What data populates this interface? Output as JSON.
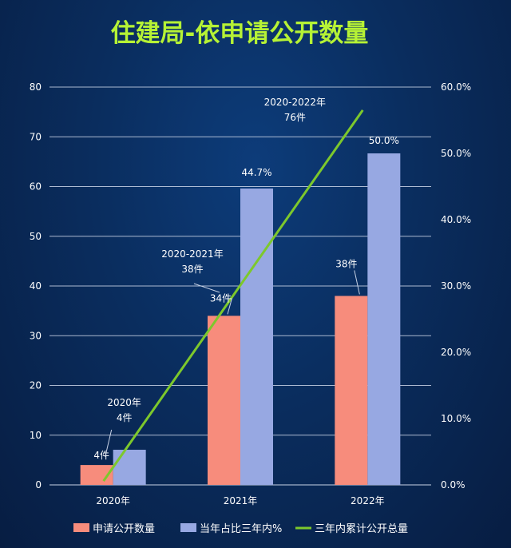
{
  "chart_data": {
    "type": "bar",
    "title": "住建局-依申请公开数量",
    "categories": [
      "2020年",
      "2021年",
      "2022年"
    ],
    "series": [
      {
        "name": "申请公开数量",
        "axis": "left",
        "values": [
          4,
          34,
          38
        ],
        "labels": [
          "4件",
          "34件",
          "38件"
        ],
        "color": "#f78c7c"
      },
      {
        "name": "当年占比三年内%",
        "axis": "right",
        "values": [
          5.3,
          44.7,
          50.0
        ],
        "labels": [
          "",
          "44.7%",
          "50.0%"
        ],
        "color": "#97a8e2"
      },
      {
        "name": "三年内累计公开总量",
        "type": "line",
        "axis": "left",
        "values": [
          4,
          38,
          76
        ],
        "labels": [
          "2020年\n4件",
          "2020-2021年\n38件",
          "2020-2022年\n76件"
        ],
        "color": "#7dc82c"
      }
    ],
    "y_left": {
      "min": 0,
      "max": 80,
      "ticks": [
        0,
        10,
        20,
        30,
        40,
        50,
        60,
        70,
        80
      ]
    },
    "y_right": {
      "min": 0,
      "max": 60,
      "ticks": [
        "0.0%",
        "10.0%",
        "20.0%",
        "30.0%",
        "40.0%",
        "50.0%",
        "60.0%"
      ]
    },
    "grid": true,
    "legend": "bottom",
    "colors": {
      "title": "#b6f235",
      "text": "#ffffff",
      "grid": "#c9d3e6"
    }
  }
}
